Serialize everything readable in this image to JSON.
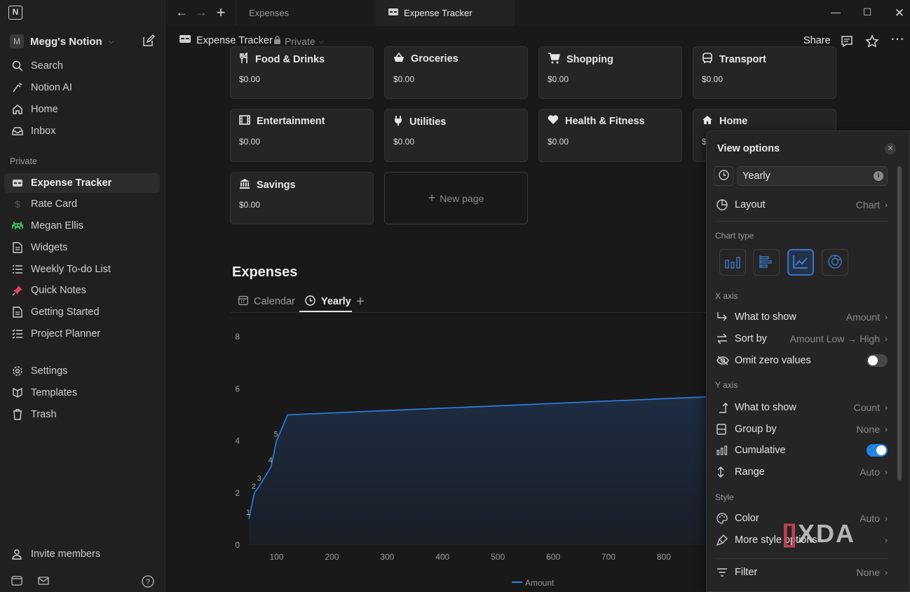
{
  "workspace": {
    "initial": "M",
    "name": "Megg's Notion"
  },
  "sidebar": {
    "top_items": [
      {
        "label": "Search",
        "icon": "search-icon"
      },
      {
        "label": "Notion AI",
        "icon": "notion-ai-icon"
      },
      {
        "label": "Home",
        "icon": "home-icon"
      },
      {
        "label": "Inbox",
        "icon": "inbox-icon"
      }
    ],
    "section_label": "Private",
    "private_items": [
      {
        "label": "Expense Tracker",
        "icon": "table-icon"
      },
      {
        "label": "Rate Card",
        "icon": "dollar-icon"
      },
      {
        "label": "Megan Ellis",
        "icon": "space-invader-icon"
      },
      {
        "label": "Widgets",
        "icon": "page-icon"
      },
      {
        "label": "Weekly To-do List",
        "icon": "list-icon"
      },
      {
        "label": "Quick Notes",
        "icon": "pushpin-icon"
      },
      {
        "label": "Getting Started",
        "icon": "page-icon"
      },
      {
        "label": "Project Planner",
        "icon": "checklist-icon"
      }
    ],
    "bottom_items": [
      {
        "label": "Settings",
        "icon": "gear-icon"
      },
      {
        "label": "Templates",
        "icon": "templates-icon"
      },
      {
        "label": "Trash",
        "icon": "trash-icon"
      }
    ],
    "invite_label": "Invite members"
  },
  "tabs": {
    "inactive": "Expenses",
    "active": "Expense Tracker"
  },
  "header": {
    "title": "Expense Tracker",
    "privacy": "Private",
    "share": "Share"
  },
  "cards": [
    {
      "title": "Food & Drinks",
      "value": "$0.00",
      "icon": "fork-knife-icon"
    },
    {
      "title": "Groceries",
      "value": "$0.00",
      "icon": "basket-icon"
    },
    {
      "title": "Shopping",
      "value": "$0.00",
      "icon": "cart-icon"
    },
    {
      "title": "Transport",
      "value": "$0.00",
      "icon": "bus-icon"
    },
    {
      "title": "Entertainment",
      "value": "$0.00",
      "icon": "film-icon"
    },
    {
      "title": "Utilities",
      "value": "$0.00",
      "icon": "plug-icon"
    },
    {
      "title": "Health & Fitness",
      "value": "$0.00",
      "icon": "heart-icon"
    },
    {
      "title": "Home",
      "value": "$",
      "icon": "home-icon"
    },
    {
      "title": "Savings",
      "value": "$0.00",
      "icon": "bank-icon"
    }
  ],
  "new_page_label": "New page",
  "section_title": "Expenses",
  "view_tabs": [
    {
      "label": "Calendar",
      "icon": "calendar-icon"
    },
    {
      "label": "Yearly",
      "icon": "clock-icon"
    }
  ],
  "chart_data": {
    "type": "area",
    "series": [
      {
        "name": "Amount",
        "x": [
          50,
          60,
          70,
          90,
          100,
          120,
          1000
        ],
        "y": [
          1,
          2,
          2.3,
          3,
          4,
          5,
          5.8
        ]
      }
    ],
    "point_labels": [
      "1",
      "2",
      "3",
      "4",
      "5"
    ],
    "x_ticks": [
      100,
      200,
      300,
      400,
      500,
      600,
      700,
      800
    ],
    "y_ticks": [
      0,
      2,
      4,
      6,
      8
    ],
    "ylim": [
      0,
      8
    ],
    "legend": "bottom-center",
    "line_color": "#2f80ed"
  },
  "panel": {
    "title": "View options",
    "view_name": "Yearly",
    "layout": {
      "label": "Layout",
      "value": "Chart"
    },
    "chart_type_label": "Chart type",
    "chart_types": [
      "vertical-bar-chart-icon",
      "horizontal-bar-chart-icon",
      "line-chart-icon",
      "donut-chart-icon"
    ],
    "x_axis_label": "X axis",
    "x_what": {
      "label": "What to show",
      "value": "Amount"
    },
    "x_sort": {
      "label": "Sort by",
      "value": "Amount Low → High"
    },
    "omit_zero": {
      "label": "Omit zero values",
      "on": false
    },
    "y_axis_label": "Y axis",
    "y_what": {
      "label": "What to show",
      "value": "Count"
    },
    "y_group": {
      "label": "Group by",
      "value": "None"
    },
    "y_cumulative": {
      "label": "Cumulative",
      "on": true
    },
    "y_range": {
      "label": "Range",
      "value": "Auto"
    },
    "style_label": "Style",
    "color": {
      "label": "Color",
      "value": "Auto"
    },
    "more_style": {
      "label": "More style options"
    },
    "filter": {
      "label": "Filter",
      "value": "None"
    }
  },
  "watermark": "XDA",
  "accent": "#2383e2"
}
